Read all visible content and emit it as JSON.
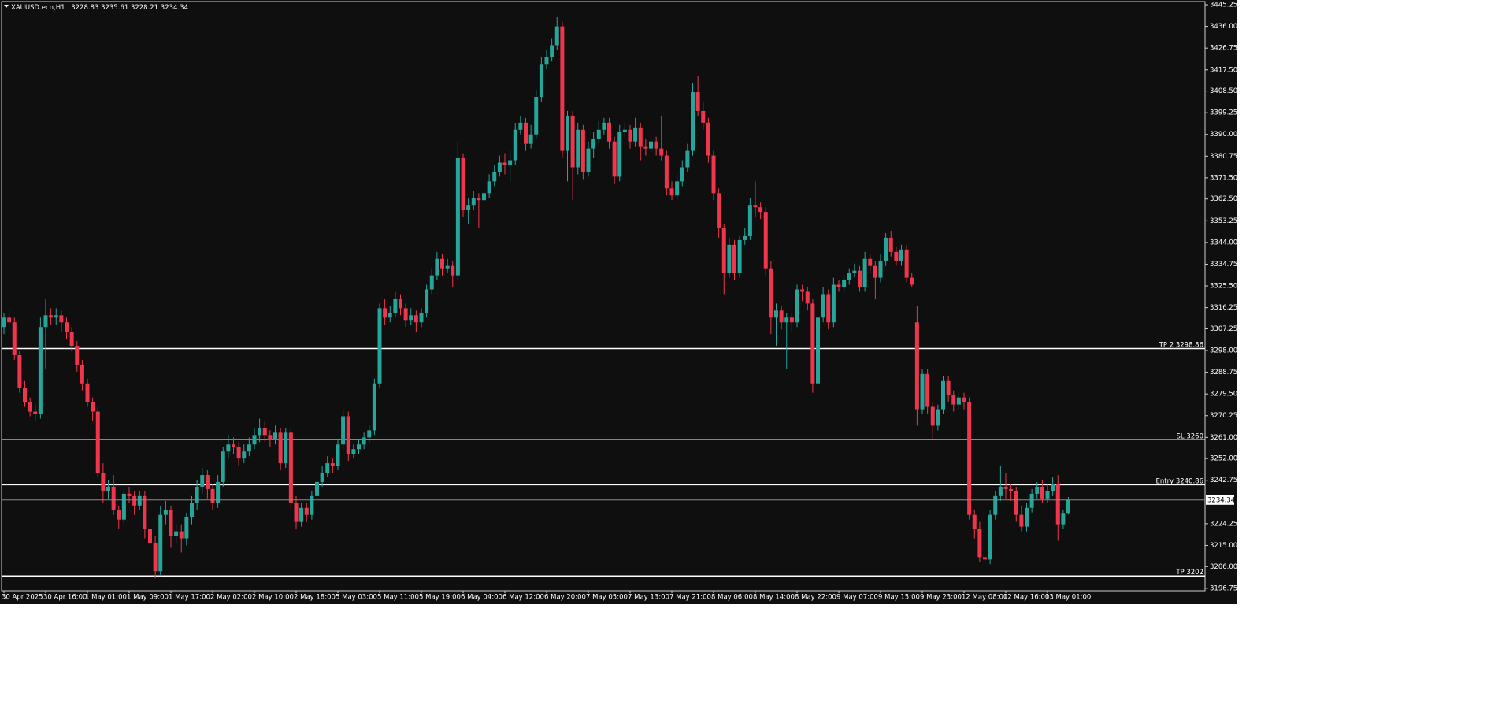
{
  "chart_data": {
    "type": "candlestick",
    "symbol": "XAUUSD.ecn,H1",
    "up_color": "#26a69a",
    "down_color": "#f0364c",
    "background": "#0f0f0f",
    "grid": false,
    "ylim": [
      3195.7,
      3446.6
    ],
    "yticks": [
      3445.25,
      {
        "value": 3436,
        "label": "3436.00"
      },
      3426.75,
      {
        "value": 3417.5,
        "label": "3417.50"
      },
      {
        "value": 3408.5,
        "label": "3408.50"
      },
      3399.25,
      {
        "value": 3390,
        "label": "3390.00"
      },
      3380.75,
      {
        "value": 3371.5,
        "label": "3371.50"
      },
      {
        "value": 3362.5,
        "label": "3362.50"
      },
      3353.25,
      {
        "value": 3344,
        "label": "3344.00"
      },
      3334.75,
      {
        "value": 3325.5,
        "label": "3325.50"
      },
      3316.25,
      3307.25,
      {
        "value": 3298,
        "label": "3298.00"
      },
      3288.75,
      {
        "value": 3279.5,
        "label": "3279.50"
      },
      3270.25,
      {
        "value": 3261,
        "label": "3261.00"
      },
      {
        "value": 3252,
        "label": "3252.00"
      },
      3242.75,
      3224.25,
      {
        "value": 3215,
        "label": "3215.00"
      },
      {
        "value": 3206,
        "label": "3206.00"
      },
      3196.75
    ],
    "levels": [
      {
        "label": "TP 2",
        "value": 3298.86
      },
      {
        "label": "SL",
        "value": 3260.0
      },
      {
        "label": "Entry",
        "value": 3240.86
      },
      {
        "label": "TP",
        "value": 3202.0
      }
    ],
    "categories": [
      "30 Apr 2025",
      null,
      null,
      null,
      null,
      null,
      null,
      null,
      "30 Apr 16:00",
      null,
      null,
      null,
      null,
      null,
      null,
      null,
      "1 May 01:00",
      null,
      null,
      null,
      null,
      null,
      null,
      null,
      "1 May 09:00",
      null,
      null,
      null,
      null,
      null,
      null,
      null,
      "1 May 17:00",
      null,
      null,
      null,
      null,
      null,
      null,
      null,
      "2 May 02:00",
      null,
      null,
      null,
      null,
      null,
      null,
      null,
      "2 May 10:00",
      null,
      null,
      null,
      null,
      null,
      null,
      null,
      "2 May 18:00",
      null,
      null,
      null,
      null,
      null,
      null,
      null,
      "5 May 03:00",
      null,
      null,
      null,
      null,
      null,
      null,
      null,
      "5 May 11:00",
      null,
      null,
      null,
      null,
      null,
      null,
      null,
      "5 May 19:00",
      null,
      null,
      null,
      null,
      null,
      null,
      null,
      "6 May 04:00",
      null,
      null,
      null,
      null,
      null,
      null,
      null,
      "6 May 12:00",
      null,
      null,
      null,
      null,
      null,
      null,
      null,
      "6 May 20:00",
      null,
      null,
      null,
      null,
      null,
      null,
      null,
      "7 May 05:00",
      null,
      null,
      null,
      null,
      null,
      null,
      null,
      "7 May 13:00",
      null,
      null,
      null,
      null,
      null,
      null,
      null,
      "7 May 21:00",
      null,
      null,
      null,
      null,
      null,
      null,
      null,
      "8 May 06:00",
      null,
      null,
      null,
      null,
      null,
      null,
      null,
      "8 May 14:00",
      null,
      null,
      null,
      null,
      null,
      null,
      null,
      "8 May 22:00",
      null,
      null,
      null,
      null,
      null,
      null,
      null,
      "9 May 07:00",
      null,
      null,
      null,
      null,
      null,
      null,
      null,
      "9 May 15:00",
      null,
      null,
      null,
      null,
      null,
      null,
      null,
      "9 May 23:00",
      null,
      null,
      null,
      null,
      null,
      null,
      null,
      "12 May 08:00",
      null,
      null,
      null,
      null,
      null,
      null,
      null,
      "12 May 16:00",
      null,
      null,
      null,
      null,
      null,
      null,
      null,
      "13 May 01:00",
      null,
      null,
      null,
      null
    ],
    "candles": [
      [
        3308,
        3314,
        3305,
        3312
      ],
      [
        3312,
        3315,
        3307,
        3310
      ],
      [
        3310,
        3312,
        3294,
        3296
      ],
      [
        3296,
        3298,
        3280,
        3282
      ],
      [
        3282,
        3285,
        3274,
        3276
      ],
      [
        3276,
        3278,
        3270,
        3272
      ],
      [
        3272,
        3275,
        3268,
        3271
      ],
      [
        3271,
        3312,
        3269,
        3308
      ],
      [
        3308,
        3320,
        3290,
        3313
      ],
      [
        3313,
        3316,
        3309,
        3312
      ],
      [
        3312,
        3316,
        3309,
        3313
      ],
      [
        3313,
        3315,
        3306,
        3310
      ],
      [
        3310,
        3312,
        3303,
        3306
      ],
      [
        3306,
        3308,
        3298,
        3300
      ],
      [
        3300,
        3302,
        3289,
        3292
      ],
      [
        3292,
        3294,
        3281,
        3284
      ],
      [
        3284,
        3286,
        3274,
        3276
      ],
      [
        3276,
        3278,
        3268,
        3272
      ],
      [
        3272,
        3274,
        3244,
        3246
      ],
      [
        3246,
        3250,
        3233,
        3238
      ],
      [
        3238,
        3243,
        3235,
        3240
      ],
      [
        3240,
        3245,
        3228,
        3230
      ],
      [
        3230,
        3232,
        3222,
        3226
      ],
      [
        3226,
        3239,
        3224,
        3237
      ],
      [
        3237,
        3240,
        3233,
        3236
      ],
      [
        3236,
        3238,
        3228,
        3232
      ],
      [
        3232,
        3238,
        3230,
        3236
      ],
      [
        3236,
        3238,
        3218,
        3222
      ],
      [
        3222,
        3225,
        3213,
        3216
      ],
      [
        3216,
        3219,
        3201,
        3204
      ],
      [
        3204,
        3232,
        3202,
        3228
      ],
      [
        3228,
        3234,
        3224,
        3230
      ],
      [
        3230,
        3232,
        3214,
        3219
      ],
      [
        3219,
        3224,
        3216,
        3221
      ],
      [
        3221,
        3224,
        3212,
        3218
      ],
      [
        3218,
        3229,
        3215,
        3227
      ],
      [
        3227,
        3236,
        3224,
        3233
      ],
      [
        3233,
        3243,
        3230,
        3240
      ],
      [
        3240,
        3248,
        3237,
        3245
      ],
      [
        3245,
        3247,
        3235,
        3239
      ],
      [
        3239,
        3241,
        3230,
        3233
      ],
      [
        3233,
        3245,
        3231,
        3242
      ],
      [
        3242,
        3257,
        3240,
        3255
      ],
      [
        3255,
        3262,
        3252,
        3258
      ],
      [
        3258,
        3261,
        3254,
        3257
      ],
      [
        3257,
        3259,
        3249,
        3252
      ],
      [
        3252,
        3258,
        3250,
        3255
      ],
      [
        3255,
        3261,
        3253,
        3258
      ],
      [
        3258,
        3265,
        3256,
        3262
      ],
      [
        3262,
        3269,
        3259,
        3265
      ],
      [
        3265,
        3268,
        3259,
        3262
      ],
      [
        3262,
        3264,
        3257,
        3260
      ],
      [
        3260,
        3266,
        3258,
        3263
      ],
      [
        3263,
        3265,
        3247,
        3250
      ],
      [
        3250,
        3265,
        3248,
        3263
      ],
      [
        3263,
        3265,
        3231,
        3233
      ],
      [
        3233,
        3236,
        3222,
        3225
      ],
      [
        3225,
        3233,
        3223,
        3231
      ],
      [
        3231,
        3233,
        3225,
        3228
      ],
      [
        3228,
        3238,
        3226,
        3236
      ],
      [
        3236,
        3245,
        3234,
        3242
      ],
      [
        3242,
        3249,
        3240,
        3246
      ],
      [
        3246,
        3253,
        3244,
        3250
      ],
      [
        3250,
        3252,
        3246,
        3249
      ],
      [
        3249,
        3260,
        3247,
        3258
      ],
      [
        3258,
        3273,
        3256,
        3270
      ],
      [
        3270,
        3272,
        3251,
        3254
      ],
      [
        3254,
        3258,
        3252,
        3256
      ],
      [
        3256,
        3260,
        3254,
        3258
      ],
      [
        3258,
        3263,
        3256,
        3261
      ],
      [
        3261,
        3266,
        3259,
        3264
      ],
      [
        3264,
        3286,
        3262,
        3284
      ],
      [
        3284,
        3318,
        3282,
        3316
      ],
      [
        3316,
        3320,
        3309,
        3312
      ],
      [
        3312,
        3317,
        3310,
        3314
      ],
      [
        3314,
        3323,
        3312,
        3320
      ],
      [
        3320,
        3322,
        3313,
        3316
      ],
      [
        3316,
        3318,
        3308,
        3311
      ],
      [
        3311,
        3316,
        3309,
        3313
      ],
      [
        3313,
        3315,
        3306,
        3310
      ],
      [
        3310,
        3316,
        3308,
        3314
      ],
      [
        3314,
        3326,
        3312,
        3324
      ],
      [
        3324,
        3333,
        3322,
        3330
      ],
      [
        3330,
        3340,
        3328,
        3337
      ],
      [
        3337,
        3339,
        3330,
        3333
      ],
      [
        3333,
        3337,
        3331,
        3334
      ],
      [
        3334,
        3336,
        3325,
        3330
      ],
      [
        3330,
        3387,
        3328,
        3380
      ],
      [
        3380,
        3382,
        3355,
        3358
      ],
      [
        3358,
        3363,
        3352,
        3360
      ],
      [
        3360,
        3366,
        3358,
        3363
      ],
      [
        3363,
        3365,
        3350,
        3362
      ],
      [
        3362,
        3367,
        3360,
        3365
      ],
      [
        3365,
        3373,
        3363,
        3370
      ],
      [
        3370,
        3377,
        3368,
        3374
      ],
      [
        3374,
        3381,
        3372,
        3378
      ],
      [
        3378,
        3382,
        3373,
        3377
      ],
      [
        3377,
        3383,
        3370,
        3379
      ],
      [
        3379,
        3395,
        3377,
        3392
      ],
      [
        3392,
        3398,
        3390,
        3395
      ],
      [
        3395,
        3397,
        3383,
        3386
      ],
      [
        3386,
        3394,
        3384,
        3390
      ],
      [
        3390,
        3409,
        3388,
        3406
      ],
      [
        3406,
        3423,
        3404,
        3420
      ],
      [
        3420,
        3426,
        3418,
        3423
      ],
      [
        3423,
        3431,
        3421,
        3428
      ],
      [
        3428,
        3440,
        3426,
        3436
      ],
      [
        3436,
        3438,
        3380,
        3383
      ],
      [
        3383,
        3400,
        3370,
        3398
      ],
      [
        3398,
        3400,
        3362,
        3376
      ],
      [
        3376,
        3395,
        3373,
        3392
      ],
      [
        3392,
        3394,
        3371,
        3374
      ],
      [
        3374,
        3387,
        3372,
        3384
      ],
      [
        3384,
        3391,
        3380,
        3388
      ],
      [
        3388,
        3396,
        3386,
        3392
      ],
      [
        3392,
        3397,
        3390,
        3395
      ],
      [
        3395,
        3397,
        3384,
        3387
      ],
      [
        3387,
        3389,
        3369,
        3372
      ],
      [
        3372,
        3394,
        3370,
        3391
      ],
      [
        3391,
        3395,
        3389,
        3392
      ],
      [
        3392,
        3394,
        3384,
        3387
      ],
      [
        3387,
        3397,
        3385,
        3393
      ],
      [
        3393,
        3395,
        3379,
        3385
      ],
      [
        3385,
        3388,
        3381,
        3384
      ],
      [
        3384,
        3390,
        3382,
        3387
      ],
      [
        3387,
        3389,
        3381,
        3384
      ],
      [
        3384,
        3398,
        3379,
        3381
      ],
      [
        3381,
        3383,
        3364,
        3367
      ],
      [
        3367,
        3370,
        3362,
        3364
      ],
      [
        3364,
        3373,
        3362,
        3370
      ],
      [
        3370,
        3379,
        3368,
        3376
      ],
      [
        3376,
        3386,
        3374,
        3383
      ],
      [
        3383,
        3412,
        3381,
        3408
      ],
      [
        3408,
        3415,
        3398,
        3400
      ],
      [
        3400,
        3404,
        3392,
        3395
      ],
      [
        3395,
        3397,
        3378,
        3381
      ],
      [
        3381,
        3383,
        3362,
        3365
      ],
      [
        3365,
        3367,
        3346,
        3350
      ],
      [
        3350,
        3352,
        3322,
        3331
      ],
      [
        3331,
        3346,
        3329,
        3343
      ],
      [
        3343,
        3345,
        3328,
        3331
      ],
      [
        3331,
        3347,
        3329,
        3345
      ],
      [
        3345,
        3350,
        3343,
        3347
      ],
      [
        3347,
        3363,
        3345,
        3360
      ],
      [
        3360,
        3370,
        3355,
        3359
      ],
      [
        3359,
        3361,
        3354,
        3357
      ],
      [
        3357,
        3359,
        3330,
        3333
      ],
      [
        3333,
        3336,
        3305,
        3312
      ],
      [
        3312,
        3318,
        3300,
        3315
      ],
      [
        3315,
        3317,
        3307,
        3310
      ],
      [
        3310,
        3314,
        3290,
        3312
      ],
      [
        3312,
        3314,
        3306,
        3310
      ],
      [
        3310,
        3326,
        3308,
        3324
      ],
      [
        3324,
        3326,
        3319,
        3323
      ],
      [
        3323,
        3325,
        3315,
        3318
      ],
      [
        3318,
        3320,
        3280,
        3284
      ],
      [
        3284,
        3316,
        3274,
        3312
      ],
      [
        3312,
        3325,
        3310,
        3322
      ],
      [
        3322,
        3324,
        3307,
        3310
      ],
      [
        3310,
        3329,
        3308,
        3326
      ],
      [
        3326,
        3328,
        3323,
        3325
      ],
      [
        3325,
        3330,
        3323,
        3328
      ],
      [
        3328,
        3333,
        3326,
        3331
      ],
      [
        3331,
        3335,
        3329,
        3332
      ],
      [
        3332,
        3334,
        3323,
        3325
      ],
      [
        3325,
        3340,
        3323,
        3337
      ],
      [
        3337,
        3339,
        3331,
        3334
      ],
      [
        3334,
        3336,
        3320,
        3329
      ],
      [
        3329,
        3339,
        3327,
        3336
      ],
      [
        3336,
        3348,
        3334,
        3346
      ],
      [
        3346,
        3349,
        3338,
        3340
      ],
      [
        3340,
        3342,
        3334,
        3336
      ],
      [
        3336,
        3343,
        3334,
        3341
      ],
      [
        3341,
        3343,
        3327,
        3329
      ],
      [
        3329,
        3331,
        3325,
        3326
      ],
      [
        3310,
        3317,
        3266,
        3273
      ],
      [
        3273,
        3290,
        3271,
        3288
      ],
      [
        3288,
        3290,
        3271,
        3274
      ],
      [
        3274,
        3276,
        3260,
        3266
      ],
      [
        3266,
        3275,
        3264,
        3273
      ],
      [
        3273,
        3287,
        3271,
        3285
      ],
      [
        3285,
        3287,
        3276,
        3279
      ],
      [
        3279,
        3281,
        3272,
        3275
      ],
      [
        3275,
        3280,
        3273,
        3278
      ],
      [
        3278,
        3280,
        3273,
        3276
      ],
      [
        3276,
        3278,
        3226,
        3228
      ],
      [
        3228,
        3230,
        3218,
        3222
      ],
      [
        3222,
        3225,
        3208,
        3210
      ],
      [
        3210,
        3212,
        3207,
        3209
      ],
      [
        3209,
        3230,
        3207,
        3228
      ],
      [
        3228,
        3238,
        3226,
        3236
      ],
      [
        3236,
        3249,
        3234,
        3240
      ],
      [
        3240,
        3246,
        3235,
        3239
      ],
      [
        3239,
        3241,
        3234,
        3238
      ],
      [
        3238,
        3240,
        3225,
        3228
      ],
      [
        3228,
        3232,
        3221,
        3223
      ],
      [
        3223,
        3233,
        3221,
        3231
      ],
      [
        3231,
        3239,
        3229,
        3237
      ],
      [
        3237,
        3242,
        3235,
        3240
      ],
      [
        3240,
        3243,
        3233,
        3235
      ],
      [
        3235,
        3241,
        3233,
        3238
      ],
      [
        3238,
        3244,
        3236,
        3241
      ],
      [
        3241,
        3245,
        3217,
        3224
      ],
      [
        3224,
        3230,
        3222,
        3228.83
      ],
      [
        3228.83,
        3235.61,
        3228.21,
        3234.34
      ]
    ]
  }
}
